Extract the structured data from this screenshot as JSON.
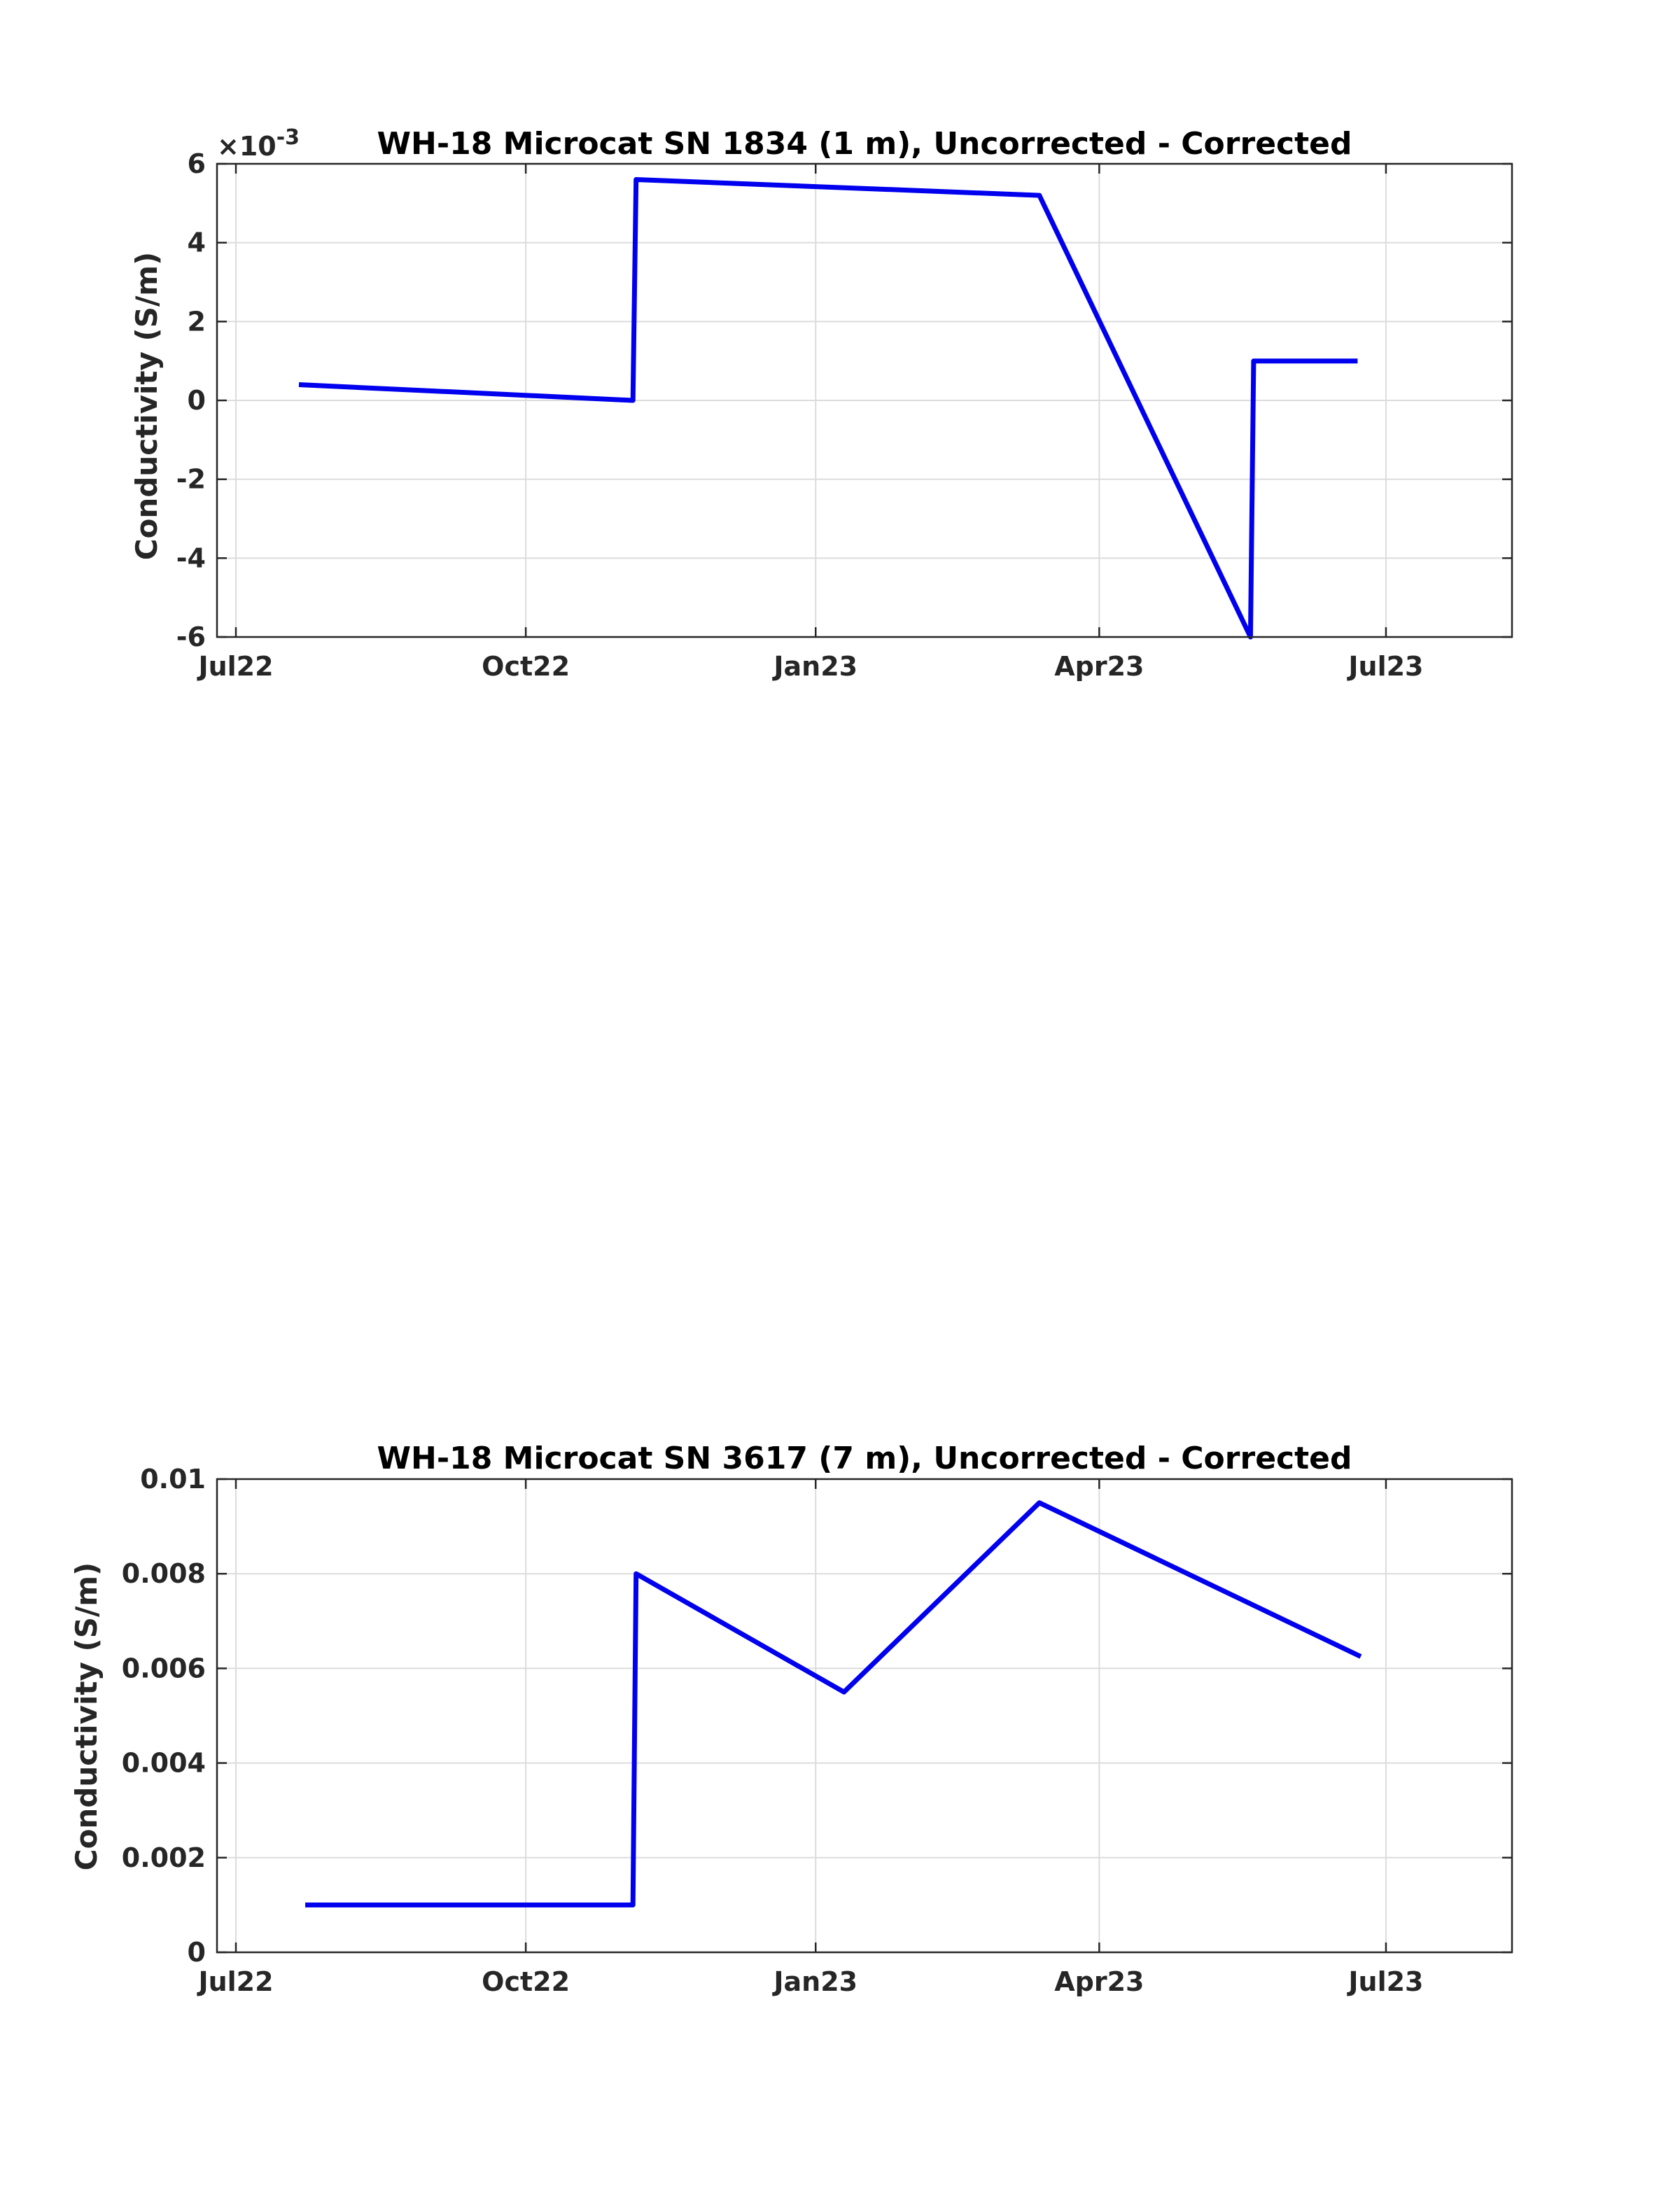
{
  "colors": {
    "series": "#0000ee",
    "axes": "#262626",
    "grid": "#dcdcdc"
  },
  "chart_data": [
    {
      "type": "line",
      "title": "WH-18 Microcat SN 1834 (1 m), Uncorrected - Corrected",
      "ylabel": "Conductivity (S/m)",
      "exponent_label": "×10",
      "exponent": "-3",
      "grid": true,
      "x_axis": "date",
      "xlim": [
        "2022-06-25",
        "2023-08-10"
      ],
      "xticks": [
        "2022-07-01",
        "2022-10-01",
        "2023-01-01",
        "2023-04-01",
        "2023-07-01"
      ],
      "xtick_labels": [
        "Jul22",
        "Oct22",
        "Jan23",
        "Apr23",
        "Jul23"
      ],
      "ylim": [
        -6,
        6
      ],
      "yticks": [
        -6,
        -4,
        -2,
        0,
        2,
        4,
        6
      ],
      "ytick_labels": [
        "-6",
        "-4",
        "-2",
        "0",
        "2",
        "4",
        "6"
      ],
      "series": [
        {
          "x": [
            "2022-07-21",
            "2022-11-04",
            "2022-11-05",
            "2023-03-13",
            "2023-05-19",
            "2023-05-20",
            "2023-06-22"
          ],
          "y": [
            0.4,
            0.0,
            5.6,
            5.2,
            -6.0,
            1.0,
            1.0
          ]
        }
      ]
    },
    {
      "type": "line",
      "title": "WH-18 Microcat SN 3617 (7 m), Uncorrected - Corrected",
      "ylabel": "Conductivity (S/m)",
      "grid": true,
      "x_axis": "date",
      "xlim": [
        "2022-06-25",
        "2023-08-10"
      ],
      "xticks": [
        "2022-07-01",
        "2022-10-01",
        "2023-01-01",
        "2023-04-01",
        "2023-07-01"
      ],
      "xtick_labels": [
        "Jul22",
        "Oct22",
        "Jan23",
        "Apr23",
        "Jul23"
      ],
      "ylim": [
        0,
        0.01
      ],
      "yticks": [
        0,
        0.002,
        0.004,
        0.006,
        0.008,
        0.01
      ],
      "ytick_labels": [
        "0",
        "0.002",
        "0.004",
        "0.006",
        "0.008",
        "0.01"
      ],
      "series": [
        {
          "x": [
            "2022-07-23",
            "2022-11-04",
            "2022-11-05",
            "2023-01-10",
            "2023-03-13",
            "2023-06-23"
          ],
          "y": [
            0.001,
            0.001,
            0.008,
            0.0055,
            0.0095,
            0.00625
          ]
        }
      ]
    }
  ]
}
